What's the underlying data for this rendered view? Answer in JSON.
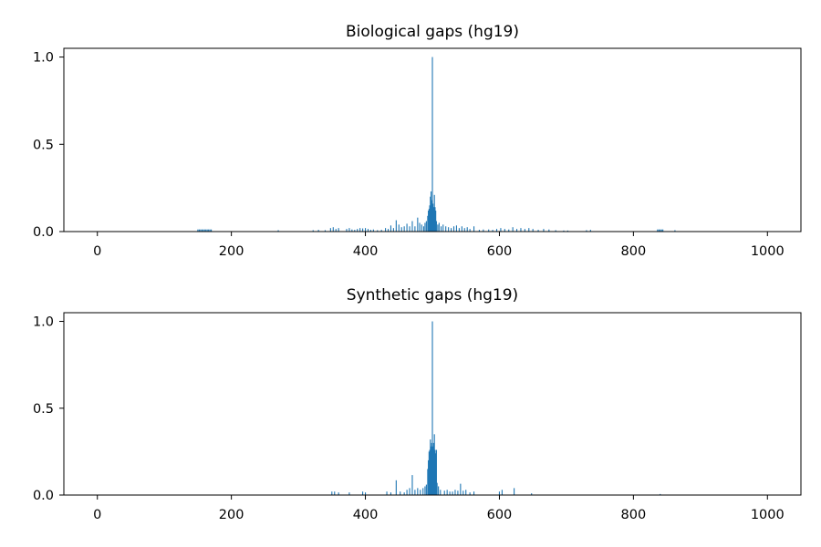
{
  "chart_data": [
    {
      "type": "bar",
      "title": "Biological gaps (hg19)",
      "xlabel": "",
      "ylabel": "",
      "xlim": [
        -50,
        1050
      ],
      "ylim": [
        0,
        1.05
      ],
      "x_ticks": [
        "0",
        "200",
        "400",
        "600",
        "800",
        "1000"
      ],
      "y_ticks": [
        "0.0",
        "0.5",
        "1.0"
      ],
      "color": "#1f77b4",
      "grid": false,
      "bars": [
        [
          150,
          0.012
        ],
        [
          152,
          0.012
        ],
        [
          154,
          0.012
        ],
        [
          156,
          0.012
        ],
        [
          158,
          0.012
        ],
        [
          160,
          0.012
        ],
        [
          162,
          0.012
        ],
        [
          164,
          0.012
        ],
        [
          166,
          0.012
        ],
        [
          168,
          0.012
        ],
        [
          170,
          0.012
        ],
        [
          270,
          0.008
        ],
        [
          322,
          0.008
        ],
        [
          330,
          0.01
        ],
        [
          340,
          0.008
        ],
        [
          348,
          0.02
        ],
        [
          352,
          0.025
        ],
        [
          356,
          0.015
        ],
        [
          360,
          0.02
        ],
        [
          372,
          0.015
        ],
        [
          376,
          0.02
        ],
        [
          380,
          0.012
        ],
        [
          384,
          0.01
        ],
        [
          388,
          0.015
        ],
        [
          392,
          0.02
        ],
        [
          396,
          0.018
        ],
        [
          400,
          0.02
        ],
        [
          404,
          0.015
        ],
        [
          408,
          0.01
        ],
        [
          412,
          0.012
        ],
        [
          418,
          0.008
        ],
        [
          424,
          0.01
        ],
        [
          430,
          0.02
        ],
        [
          434,
          0.015
        ],
        [
          438,
          0.035
        ],
        [
          442,
          0.02
        ],
        [
          446,
          0.065
        ],
        [
          450,
          0.04
        ],
        [
          454,
          0.025
        ],
        [
          458,
          0.03
        ],
        [
          462,
          0.045
        ],
        [
          466,
          0.03
        ],
        [
          470,
          0.06
        ],
        [
          474,
          0.03
        ],
        [
          478,
          0.08
        ],
        [
          481,
          0.05
        ],
        [
          484,
          0.04
        ],
        [
          487,
          0.03
        ],
        [
          489,
          0.05
        ],
        [
          491,
          0.06
        ],
        [
          493,
          0.09
        ],
        [
          494,
          0.12
        ],
        [
          495,
          0.13
        ],
        [
          496,
          0.15
        ],
        [
          497,
          0.2
        ],
        [
          498,
          0.23
        ],
        [
          499,
          0.18
        ],
        [
          500,
          1.0
        ],
        [
          501,
          0.16
        ],
        [
          502,
          0.14
        ],
        [
          503,
          0.21
        ],
        [
          504,
          0.14
        ],
        [
          505,
          0.12
        ],
        [
          506,
          0.06
        ],
        [
          508,
          0.04
        ],
        [
          510,
          0.05
        ],
        [
          513,
          0.03
        ],
        [
          516,
          0.04
        ],
        [
          520,
          0.03
        ],
        [
          524,
          0.025
        ],
        [
          528,
          0.02
        ],
        [
          532,
          0.03
        ],
        [
          536,
          0.035
        ],
        [
          540,
          0.02
        ],
        [
          544,
          0.03
        ],
        [
          548,
          0.02
        ],
        [
          552,
          0.025
        ],
        [
          556,
          0.015
        ],
        [
          562,
          0.03
        ],
        [
          570,
          0.01
        ],
        [
          576,
          0.012
        ],
        [
          584,
          0.012
        ],
        [
          590,
          0.01
        ],
        [
          596,
          0.015
        ],
        [
          602,
          0.02
        ],
        [
          608,
          0.015
        ],
        [
          614,
          0.012
        ],
        [
          620,
          0.025
        ],
        [
          626,
          0.015
        ],
        [
          632,
          0.02
        ],
        [
          638,
          0.015
        ],
        [
          644,
          0.02
        ],
        [
          650,
          0.015
        ],
        [
          658,
          0.01
        ],
        [
          666,
          0.015
        ],
        [
          674,
          0.012
        ],
        [
          684,
          0.008
        ],
        [
          696,
          0.006
        ],
        [
          702,
          0.006
        ],
        [
          730,
          0.008
        ],
        [
          736,
          0.01
        ],
        [
          836,
          0.012
        ],
        [
          838,
          0.012
        ],
        [
          840,
          0.012
        ],
        [
          842,
          0.012
        ],
        [
          844,
          0.012
        ],
        [
          862,
          0.008
        ]
      ]
    },
    {
      "type": "bar",
      "title": "Synthetic gaps (hg19)",
      "xlabel": "",
      "ylabel": "",
      "xlim": [
        -50,
        1050
      ],
      "ylim": [
        0,
        1.05
      ],
      "x_ticks": [
        "0",
        "200",
        "400",
        "600",
        "800",
        "1000"
      ],
      "y_ticks": [
        "0.0",
        "0.5",
        "1.0"
      ],
      "color": "#1f77b4",
      "grid": false,
      "bars": [
        [
          350,
          0.02
        ],
        [
          354,
          0.02
        ],
        [
          360,
          0.015
        ],
        [
          376,
          0.015
        ],
        [
          396,
          0.02
        ],
        [
          400,
          0.015
        ],
        [
          432,
          0.02
        ],
        [
          438,
          0.015
        ],
        [
          446,
          0.085
        ],
        [
          452,
          0.02
        ],
        [
          458,
          0.015
        ],
        [
          462,
          0.03
        ],
        [
          466,
          0.04
        ],
        [
          470,
          0.115
        ],
        [
          474,
          0.03
        ],
        [
          478,
          0.04
        ],
        [
          482,
          0.03
        ],
        [
          486,
          0.04
        ],
        [
          489,
          0.05
        ],
        [
          491,
          0.06
        ],
        [
          493,
          0.15
        ],
        [
          494,
          0.2
        ],
        [
          495,
          0.25
        ],
        [
          496,
          0.26
        ],
        [
          497,
          0.32
        ],
        [
          498,
          0.28
        ],
        [
          499,
          0.3
        ],
        [
          500,
          1.0
        ],
        [
          501,
          0.28
        ],
        [
          502,
          0.3
        ],
        [
          503,
          0.35
        ],
        [
          504,
          0.26
        ],
        [
          505,
          0.24
        ],
        [
          506,
          0.26
        ],
        [
          507,
          0.07
        ],
        [
          509,
          0.05
        ],
        [
          512,
          0.03
        ],
        [
          518,
          0.025
        ],
        [
          522,
          0.03
        ],
        [
          526,
          0.02
        ],
        [
          530,
          0.02
        ],
        [
          534,
          0.03
        ],
        [
          538,
          0.025
        ],
        [
          542,
          0.065
        ],
        [
          546,
          0.025
        ],
        [
          550,
          0.03
        ],
        [
          556,
          0.015
        ],
        [
          562,
          0.02
        ],
        [
          600,
          0.02
        ],
        [
          604,
          0.03
        ],
        [
          622,
          0.04
        ],
        [
          648,
          0.01
        ],
        [
          840,
          0.006
        ]
      ]
    }
  ]
}
